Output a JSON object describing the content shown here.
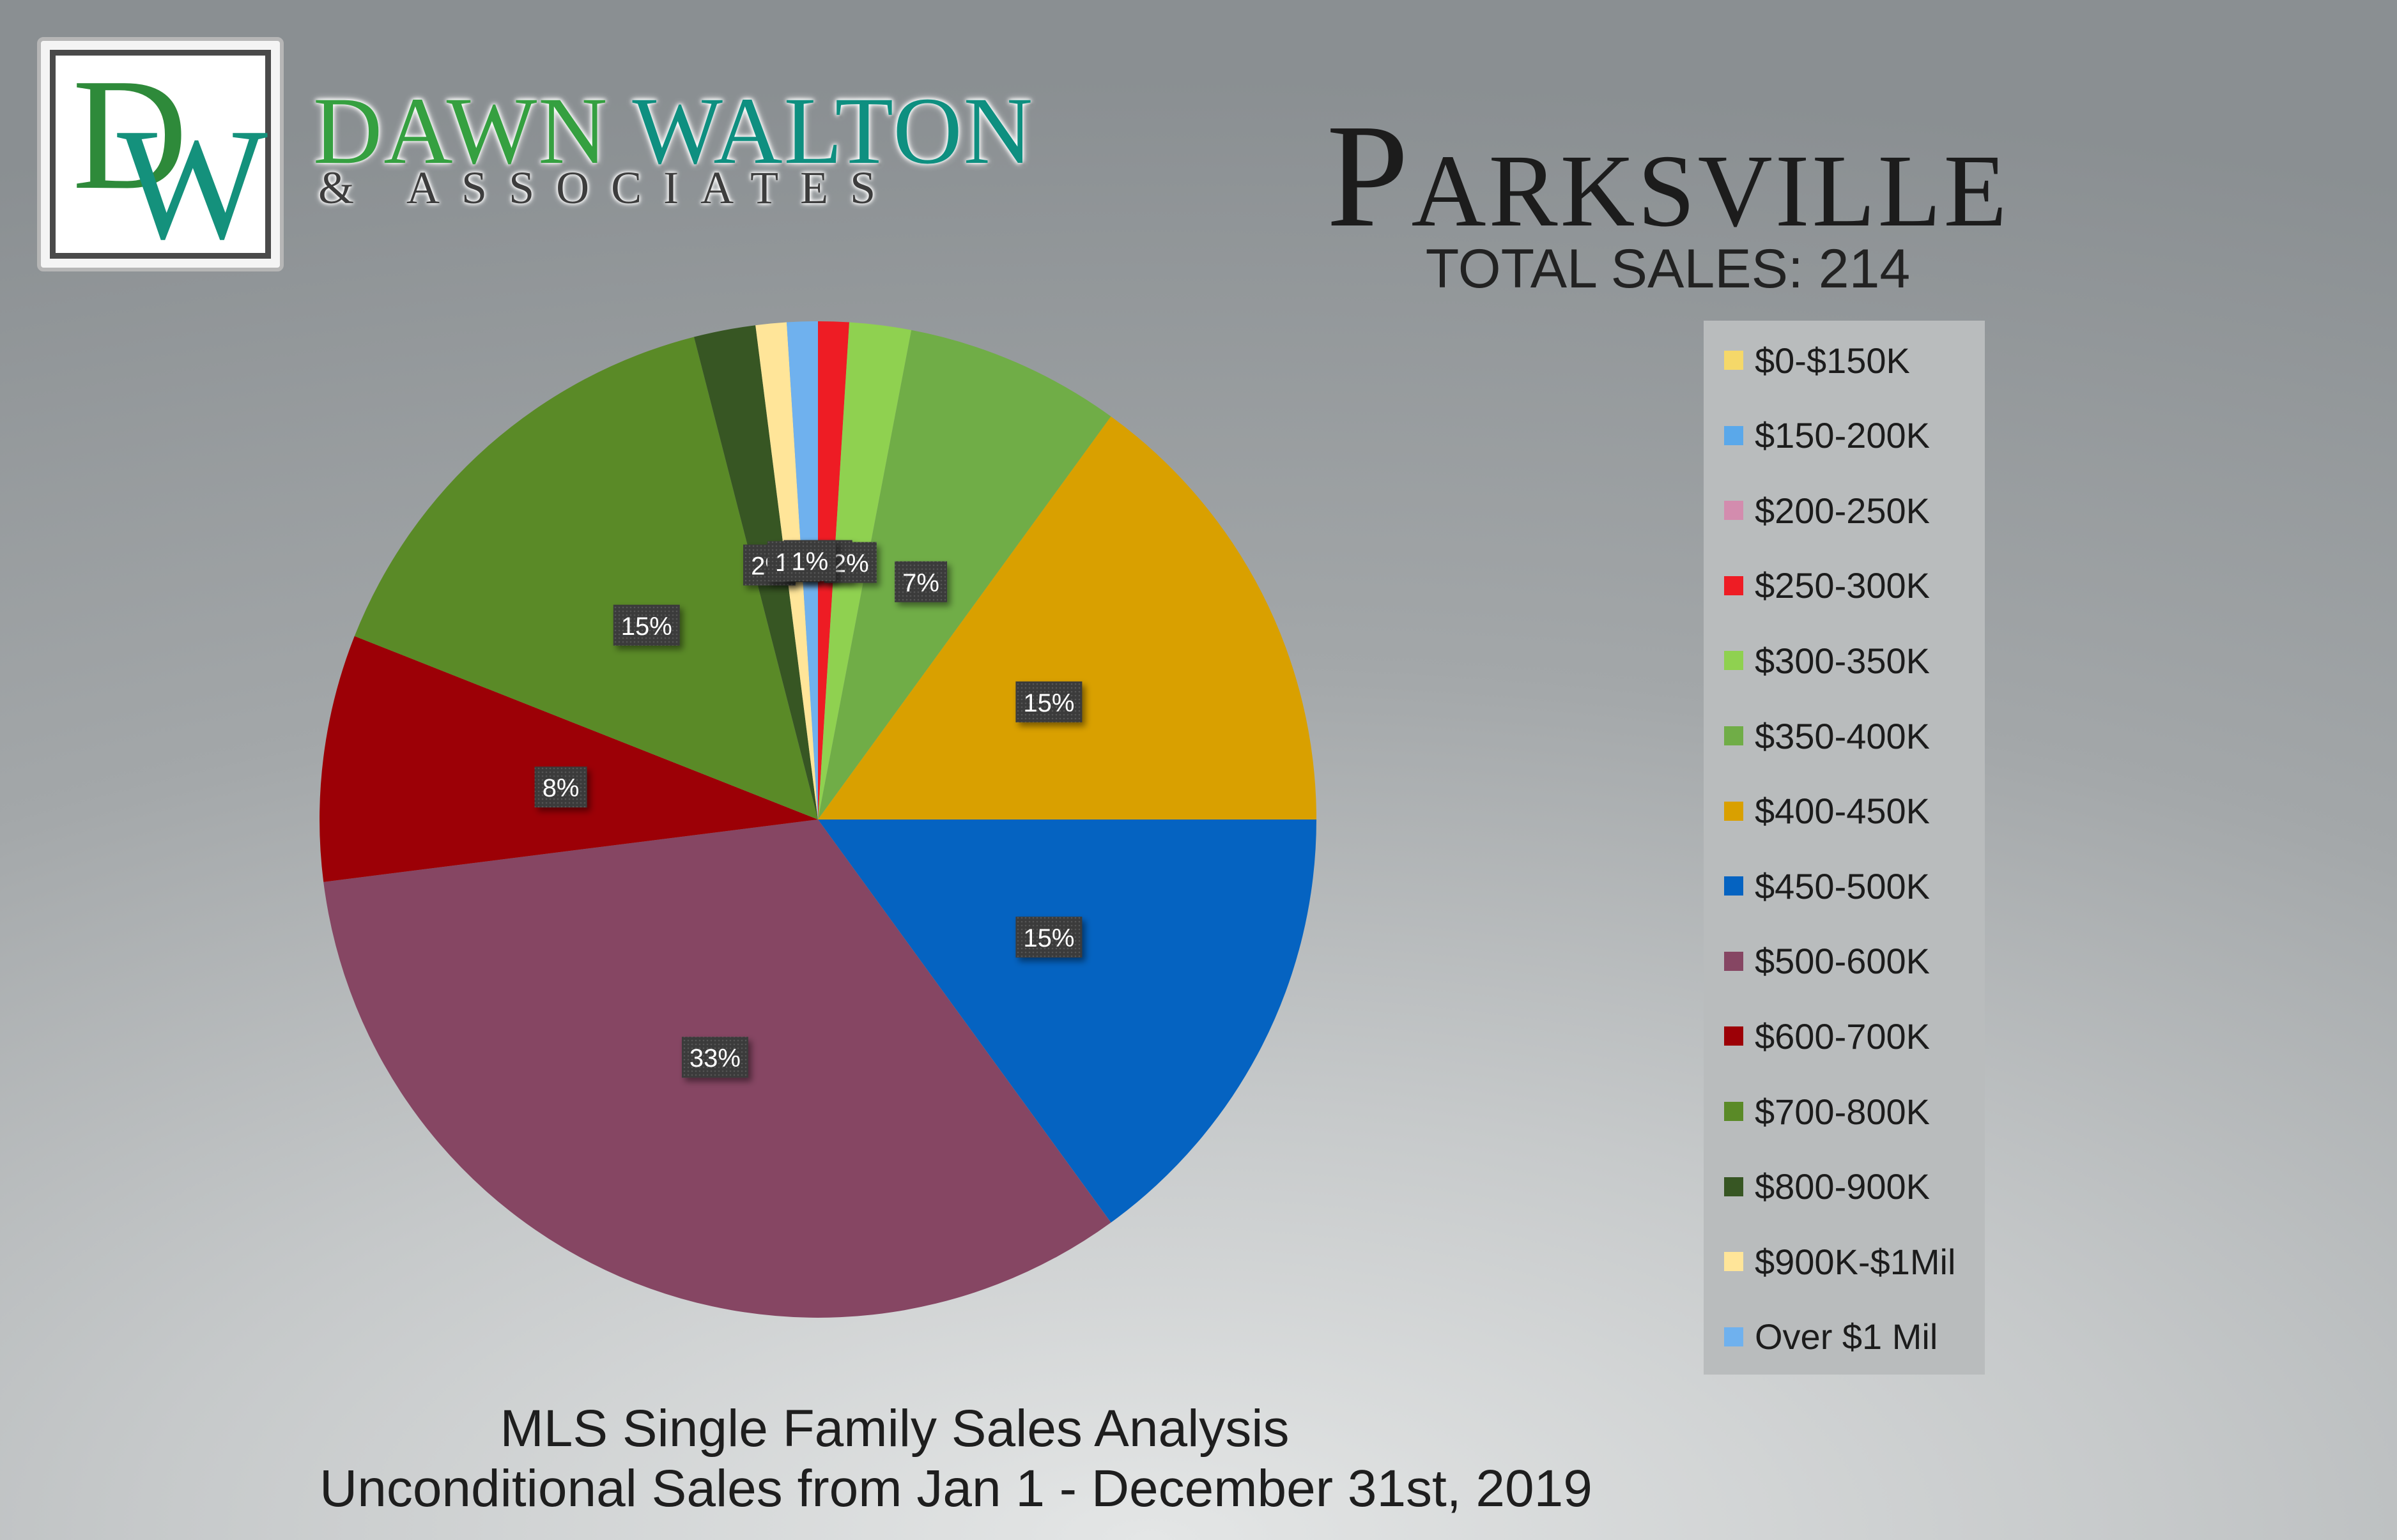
{
  "brand": {
    "logo_letters": "DW",
    "name_first": "DAWN",
    "name_last": "WALTON",
    "subtitle": "& ASSOCIATES"
  },
  "header": {
    "city": "Parksville",
    "total_sales_label": "TOTAL SALES: 214"
  },
  "footer": {
    "line1": "MLS Single Family Sales Analysis",
    "line2": "Unconditional Sales from Jan 1 - December 31st, 2019"
  },
  "chart_data": {
    "type": "pie",
    "title": "Parksville",
    "subtitle": "TOTAL SALES: 214",
    "legend_position": "right",
    "label_colors": {
      "box": "#3c3c3c",
      "text": "#ffffff"
    },
    "slices": [
      {
        "label": "$0-$150K",
        "value": 0,
        "color": "#f5d869",
        "data_label": ""
      },
      {
        "label": "$150-200K",
        "value": 0,
        "color": "#5aa8ea",
        "data_label": ""
      },
      {
        "label": "$200-250K",
        "value": 0,
        "color": "#d38cae",
        "data_label": ""
      },
      {
        "label": "$250-300K",
        "value": 1,
        "color": "#ee1c24",
        "data_label": "1%"
      },
      {
        "label": "$300-350K",
        "value": 2,
        "color": "#8fd150",
        "data_label": "2%"
      },
      {
        "label": "$350-400K",
        "value": 7,
        "color": "#70ad47",
        "data_label": "7%"
      },
      {
        "label": "$400-450K",
        "value": 15,
        "color": "#d9a000",
        "data_label": "15%"
      },
      {
        "label": "$450-500K",
        "value": 15,
        "color": "#0563c1",
        "data_label": "15%"
      },
      {
        "label": "$500-600K",
        "value": 33,
        "color": "#864663",
        "data_label": "33%"
      },
      {
        "label": "$600-700K",
        "value": 8,
        "color": "#9c0006",
        "data_label": "8%"
      },
      {
        "label": "$700-800K",
        "value": 15,
        "color": "#5a8a27",
        "data_label": "15%"
      },
      {
        "label": "$800-900K",
        "value": 2,
        "color": "#375623",
        "data_label": "2%"
      },
      {
        "label": "$900K-$1Mil",
        "value": 1,
        "color": "#ffe599",
        "data_label": "1%"
      },
      {
        "label": "Over $1 Mil",
        "value": 1,
        "color": "#6fb1ee",
        "data_label": "1%"
      }
    ]
  }
}
